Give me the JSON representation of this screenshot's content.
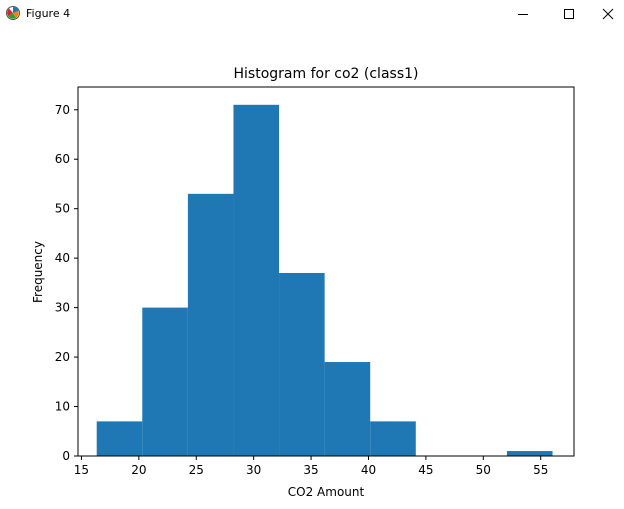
{
  "window": {
    "title": "Figure 4",
    "icon": "matplotlib-figure-icon"
  },
  "colors": {
    "bar": "#1f77b4",
    "axes": "#000000",
    "background": "#ffffff"
  },
  "chart_data": {
    "type": "bar",
    "title": "Histogram for co2 (class1)",
    "xlabel": "CO2 Amount",
    "ylabel": "Frequency",
    "xlim": [
      14.7,
      57.9
    ],
    "ylim": [
      0,
      74.6
    ],
    "xticks": [
      15,
      20,
      25,
      30,
      35,
      40,
      45,
      50,
      55
    ],
    "yticks": [
      0,
      10,
      20,
      30,
      40,
      50,
      60,
      70
    ],
    "bin_edges": [
      16.33,
      20.3,
      24.27,
      28.24,
      32.21,
      36.18,
      40.15,
      44.12,
      48.09,
      52.06,
      56.03
    ],
    "values": [
      7,
      30,
      53,
      71,
      37,
      19,
      7,
      0,
      0,
      1
    ],
    "color": "#1f77b4"
  }
}
